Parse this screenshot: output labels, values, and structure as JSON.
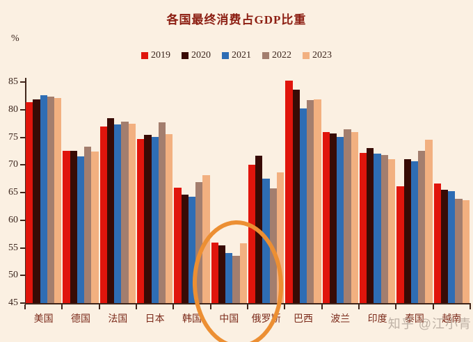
{
  "page": {
    "background": "#FBF0E2"
  },
  "title": "各国最终消费占GDP比重",
  "y_axis": {
    "unit": "%"
  },
  "watermark": "知乎 @江小青",
  "chart_data": {
    "type": "bar",
    "title": "各国最终消费占GDP比重",
    "xlabel": "",
    "ylabel": "%",
    "ylim": [
      45,
      85
    ],
    "ytick_step": 5,
    "yticks": [
      85,
      80,
      75,
      70,
      65,
      60,
      55,
      50,
      45
    ],
    "grid": false,
    "legend_position": "top-center",
    "categories": [
      "美国",
      "德国",
      "法国",
      "日本",
      "韩国",
      "中国",
      "俄罗斯",
      "巴西",
      "波兰",
      "印度",
      "泰国",
      "越南"
    ],
    "series": [
      {
        "name": "2019",
        "color": "#E0150C",
        "values": [
          81.4,
          72.5,
          76.9,
          74.7,
          65.9,
          55.9,
          70.0,
          85.2,
          76.0,
          72.2,
          66.1,
          66.6
        ]
      },
      {
        "name": "2020",
        "color": "#380B05",
        "values": [
          81.8,
          72.5,
          78.5,
          75.5,
          64.6,
          55.4,
          71.7,
          83.6,
          75.7,
          73.1,
          71.0,
          65.5
        ]
      },
      {
        "name": "2021",
        "color": "#2E6DB4",
        "values": [
          82.6,
          71.6,
          77.3,
          75.1,
          64.2,
          54.1,
          67.5,
          80.2,
          75.1,
          72.0,
          70.7,
          65.3
        ]
      },
      {
        "name": "2022",
        "color": "#A37E6E",
        "values": [
          82.3,
          73.3,
          77.8,
          77.7,
          66.9,
          53.5,
          65.8,
          81.7,
          76.4,
          71.8,
          72.6,
          63.9
        ]
      },
      {
        "name": "2023",
        "color": "#F2B080",
        "values": [
          82.1,
          72.4,
          77.4,
          75.6,
          68.1,
          55.8,
          68.6,
          81.8,
          76.0,
          71.1,
          74.6,
          63.6
        ]
      }
    ],
    "annotations": [
      {
        "type": "ellipse",
        "target_category": "中国",
        "color": "#EC8F33",
        "note": "hand-drawn circle highlighting China group, extends below axis"
      }
    ],
    "patterned_bar": {
      "category": "中国",
      "series": "2023",
      "style": "dotted"
    }
  }
}
